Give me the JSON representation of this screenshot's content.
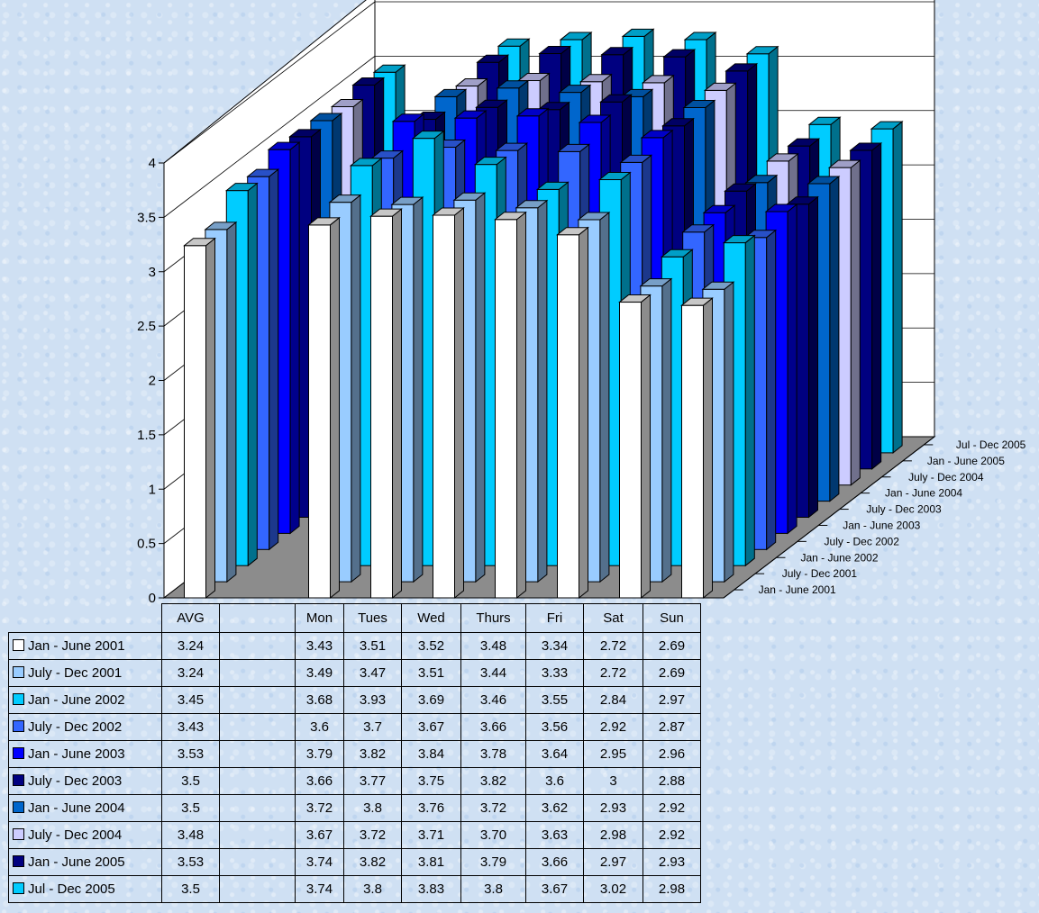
{
  "chart_data": {
    "type": "bar",
    "subtype": "3d-clustered-bar",
    "categories": [
      "AVG",
      "",
      "Mon",
      "Tues",
      "Wed",
      "Thurs",
      "Fri",
      "Sat",
      "Sun"
    ],
    "series": [
      {
        "name": "Jan - June 2001",
        "color": "#ffffff",
        "values": [
          "3.24",
          "",
          "3.43",
          "3.51",
          "3.52",
          "3.48",
          "3.34",
          "2.72",
          "2.69"
        ]
      },
      {
        "name": "July - Dec 2001",
        "color": "#99ccff",
        "values": [
          "3.24",
          "",
          "3.49",
          "3.47",
          "3.51",
          "3.44",
          "3.33",
          "2.72",
          "2.69"
        ]
      },
      {
        "name": "Jan - June 2002",
        "color": "#00ccff",
        "values": [
          "3.45",
          "",
          "3.68",
          "3.93",
          "3.69",
          "3.46",
          "3.55",
          "2.84",
          "2.97"
        ]
      },
      {
        "name": "July - Dec 2002",
        "color": "#3366ff",
        "values": [
          "3.43",
          "",
          "3.6",
          "3.7",
          "3.67",
          "3.66",
          "3.56",
          "2.92",
          "2.87"
        ]
      },
      {
        "name": "Jan - June 2003",
        "color": "#0000ff",
        "values": [
          "3.53",
          "",
          "3.79",
          "3.82",
          "3.84",
          "3.78",
          "3.64",
          "2.95",
          "2.96"
        ]
      },
      {
        "name": "July - Dec 2003",
        "color": "#000080",
        "values": [
          "3.5",
          "",
          "3.66",
          "3.77",
          "3.75",
          "3.82",
          "3.6",
          "3",
          "2.88"
        ]
      },
      {
        "name": "Jan - June 2004",
        "color": "#0066cc",
        "values": [
          "3.5",
          "",
          "3.72",
          "3.8",
          "3.76",
          "3.72",
          "3.62",
          "2.93",
          "2.92"
        ]
      },
      {
        "name": "July - Dec 2004",
        "color": "#ccccff",
        "values": [
          "3.48",
          "",
          "3.67",
          "3.72",
          "3.71",
          "3.70",
          "3.63",
          "2.98",
          "2.92"
        ]
      },
      {
        "name": "Jan - June 2005",
        "color": "#000080",
        "values": [
          "3.53",
          "",
          "3.74",
          "3.82",
          "3.81",
          "3.79",
          "3.66",
          "2.97",
          "2.93"
        ]
      },
      {
        "name": "Jul - Dec 2005",
        "color": "#00ccff",
        "values": [
          "3.5",
          "",
          "3.74",
          "3.8",
          "3.83",
          "3.8",
          "3.67",
          "3.02",
          "2.98"
        ]
      }
    ],
    "y_ticks": [
      "0",
      "0.5",
      "1",
      "1.5",
      "2",
      "2.5",
      "3",
      "3.5",
      "4"
    ],
    "ylim": [
      0,
      4
    ],
    "grid": true,
    "legend": "data-table-bottom"
  }
}
